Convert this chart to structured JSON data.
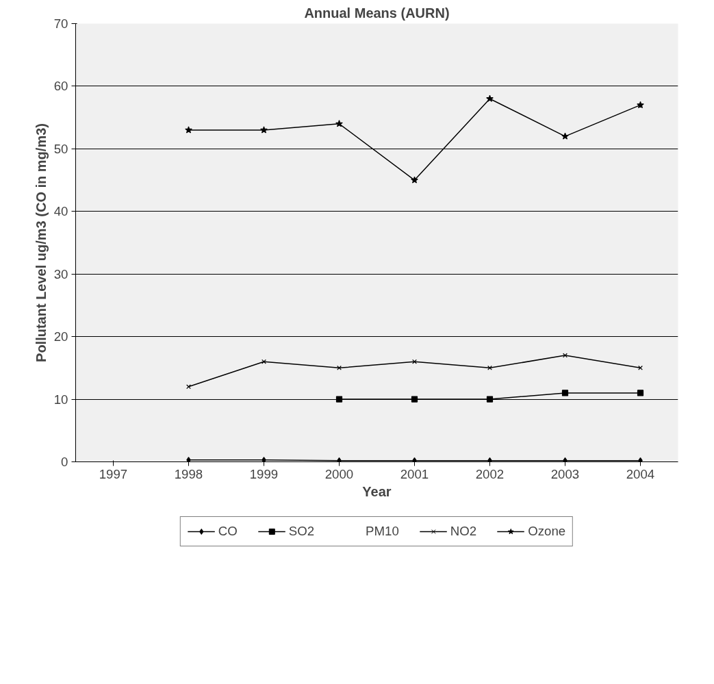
{
  "chart_data": {
    "type": "line",
    "title": "Annual Means (AURN)",
    "xlabel": "Year",
    "ylabel": "Pollutant Level ug/m3 (CO in mg/m3)",
    "categories": [
      "1997",
      "1998",
      "1999",
      "2000",
      "2001",
      "2002",
      "2003",
      "2004"
    ],
    "series": [
      {
        "name": "CO",
        "color": "#000000",
        "marker": "diamond",
        "values": [
          null,
          0.3,
          0.3,
          0.2,
          0.2,
          0.2,
          0.2,
          0.2
        ]
      },
      {
        "name": "SO2",
        "color": "#000000",
        "marker": "square",
        "values": [
          null,
          null,
          null,
          10,
          10,
          10,
          11,
          11
        ]
      },
      {
        "name": "PM10",
        "marker": "none",
        "values": [
          null,
          null,
          null,
          null,
          null,
          null,
          null,
          null
        ]
      },
      {
        "name": "NO2",
        "color": "#000000",
        "marker": "cross",
        "values": [
          null,
          12,
          16,
          15,
          16,
          15,
          17,
          15
        ]
      },
      {
        "name": "Ozone",
        "color": "#000000",
        "marker": "star",
        "values": [
          null,
          53,
          53,
          54,
          45,
          58,
          52,
          57
        ]
      }
    ],
    "ylim": [
      0,
      70
    ],
    "yticks": [
      0,
      10,
      20,
      30,
      40,
      50,
      60,
      70
    ],
    "grid": "y",
    "legend": "bottom",
    "line_style": "solid"
  }
}
